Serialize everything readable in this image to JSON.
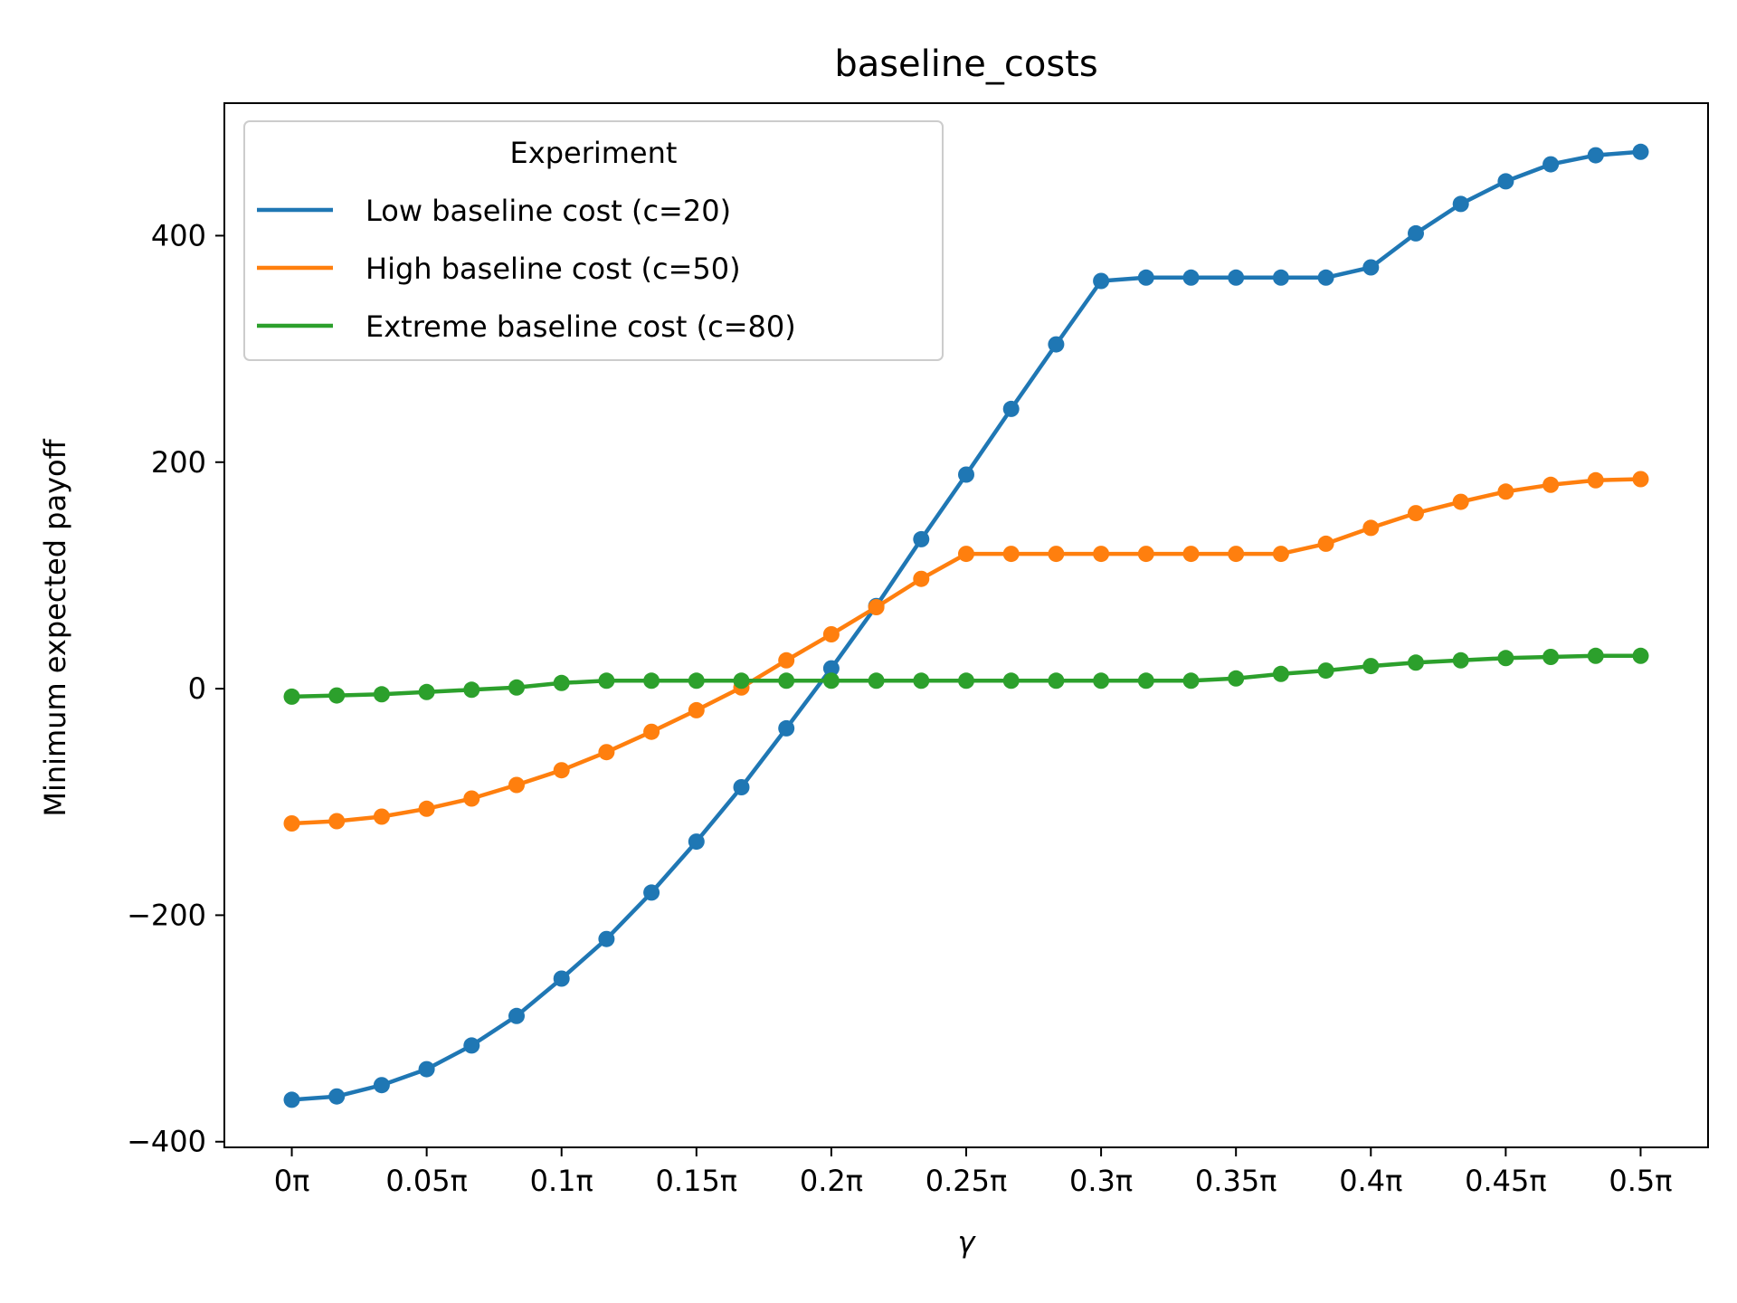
{
  "chart_data": {
    "type": "line",
    "title": "baseline_costs",
    "xlabel": "γ",
    "ylabel": "Minimum expected payoff",
    "x_unit": "π",
    "xlim": [
      -0.025,
      0.525
    ],
    "ylim": [
      -405,
      517
    ],
    "xticks": [
      0,
      0.05,
      0.1,
      0.15,
      0.2,
      0.25,
      0.3,
      0.35,
      0.4,
      0.45,
      0.5
    ],
    "xtick_labels": [
      "0π",
      "0.05π",
      "0.1π",
      "0.15π",
      "0.2π",
      "0.25π",
      "0.3π",
      "0.35π",
      "0.4π",
      "0.45π",
      "0.5π"
    ],
    "yticks": [
      -400,
      -200,
      0,
      200,
      400
    ],
    "ytick_labels": [
      "−400",
      "−200",
      "0",
      "200",
      "400"
    ],
    "grid": false,
    "legend": {
      "title": "Experiment",
      "position": "top-left"
    },
    "x": [
      0,
      0.016667,
      0.033333,
      0.05,
      0.066667,
      0.083333,
      0.1,
      0.116667,
      0.133333,
      0.15,
      0.166667,
      0.183333,
      0.2,
      0.216667,
      0.233333,
      0.25,
      0.266667,
      0.283333,
      0.3,
      0.316667,
      0.333333,
      0.35,
      0.366667,
      0.383333,
      0.4,
      0.416667,
      0.433333,
      0.45,
      0.466667,
      0.483333,
      0.5
    ],
    "series": [
      {
        "name": "Low baseline cost (c=20)",
        "color": "#1f77b4",
        "values": [
          -363,
          -360,
          -350,
          -336,
          -315,
          -289,
          -256,
          -221,
          -180,
          -135,
          -87,
          -35,
          18,
          73,
          132,
          189,
          247,
          304,
          360,
          363,
          363,
          363,
          363,
          363,
          372,
          402,
          428,
          448,
          463,
          471,
          474
        ]
      },
      {
        "name": "High baseline cost (c=50)",
        "color": "#ff7f0e",
        "values": [
          -119,
          -117,
          -113,
          -106,
          -97,
          -85,
          -72,
          -56,
          -38,
          -19,
          1,
          25,
          48,
          72,
          97,
          119,
          119,
          119,
          119,
          119,
          119,
          119,
          119,
          128,
          142,
          155,
          165,
          174,
          180,
          184,
          185
        ]
      },
      {
        "name": "Extreme baseline cost (c=80)",
        "color": "#2ca02c",
        "values": [
          -7,
          -6,
          -5,
          -3,
          -1,
          1,
          5,
          7,
          7,
          7,
          7,
          7,
          7,
          7,
          7,
          7,
          7,
          7,
          7,
          7,
          7,
          9,
          13,
          16,
          20,
          23,
          25,
          27,
          28,
          29,
          29
        ]
      }
    ]
  }
}
